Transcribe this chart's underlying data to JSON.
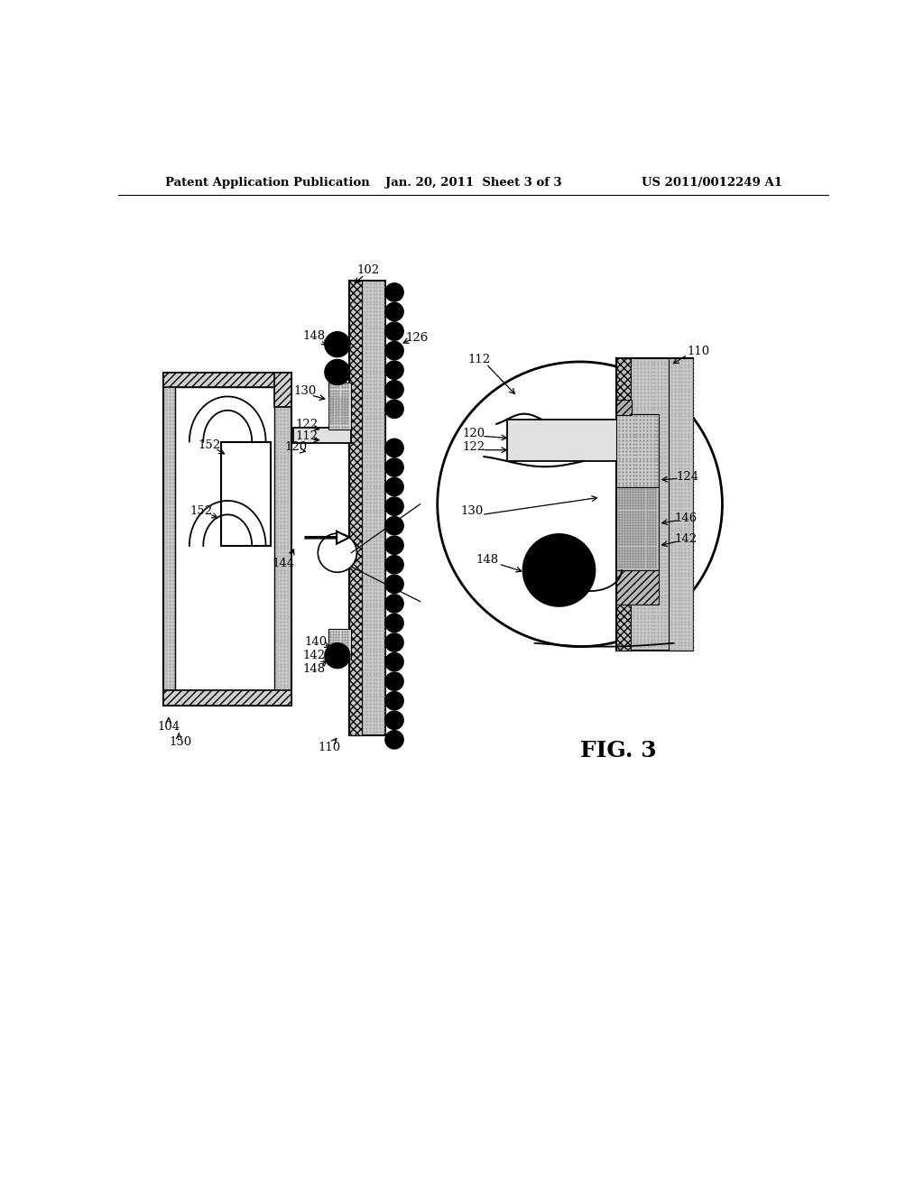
{
  "title_left": "Patent Application Publication",
  "title_center": "Jan. 20, 2011  Sheet 3 of 3",
  "title_right": "US 2011/0012249 A1",
  "fig_label": "FIG. 3",
  "background_color": "#ffffff"
}
